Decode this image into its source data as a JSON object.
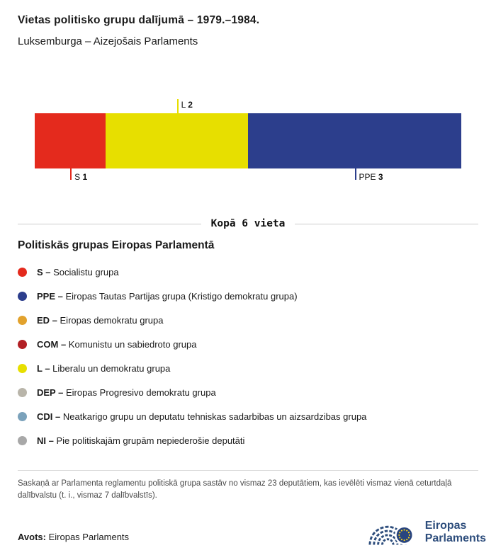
{
  "header": {
    "title": "Vietas politisko grupu dalījumā – 1979.–1984.",
    "subtitle": "Luksemburga – Aizejošais Parlaments"
  },
  "chart_data": {
    "type": "bar",
    "variant": "horizontal-stacked-seat-bar",
    "title": "Vietas politisko grupu dalījumā – 1979.–1984.",
    "total_seats": 6,
    "total_label": "Kopā 6 vieta",
    "categories": [
      "S",
      "L",
      "PPE"
    ],
    "values": [
      1,
      2,
      3
    ],
    "segments": [
      {
        "group": "S",
        "seats": 1,
        "color": "#e42a1d",
        "label_position": "below"
      },
      {
        "group": "L",
        "seats": 2,
        "color": "#e7df00",
        "label_position": "above"
      },
      {
        "group": "PPE",
        "seats": 3,
        "color": "#2c3e8c",
        "label_position": "below"
      }
    ]
  },
  "legend": {
    "heading": "Politiskās grupas Eiropas Parlamentā",
    "items": [
      {
        "abbr": "S –",
        "label": "Socialistu grupa",
        "color": "#e42a1d"
      },
      {
        "abbr": "PPE –",
        "label": "Eiropas Tautas Partijas grupa (Kristigo demokratu grupa)",
        "color": "#2c3e8c"
      },
      {
        "abbr": "ED –",
        "label": "Eiropas demokratu grupa",
        "color": "#e2a22d"
      },
      {
        "abbr": "COM –",
        "label": "Komunistu un sabiedroto grupa",
        "color": "#b22025"
      },
      {
        "abbr": "L –",
        "label": "Liberalu un demokratu grupa",
        "color": "#e7df00"
      },
      {
        "abbr": "DEP –",
        "label": "Eiropas Progresivo demokratu grupa",
        "color": "#b9b5aa"
      },
      {
        "abbr": "CDI –",
        "label": "Neatkarigo grupu un deputatu tehniskas sadarbibas un aizsardzibas grupa",
        "color": "#7ba2bb"
      },
      {
        "abbr": "NI –",
        "label": "Pie politiskajām grupām nepiederošie deputāti",
        "color": "#a8a8a8"
      }
    ]
  },
  "footnote": "Saskaņā ar Parlamenta reglamentu politiskā grupa sastāv no vismaz 23 deputātiem, kas ievēlēti vismaz vienā ceturtdaļā dalībvalstu (t. i., vismaz 7 dalībvalstīs).",
  "source": {
    "label": "Avots:",
    "value": "Eiropas Parlaments"
  },
  "logo": {
    "line1": "Eiropas",
    "line2": "Parlaments"
  }
}
